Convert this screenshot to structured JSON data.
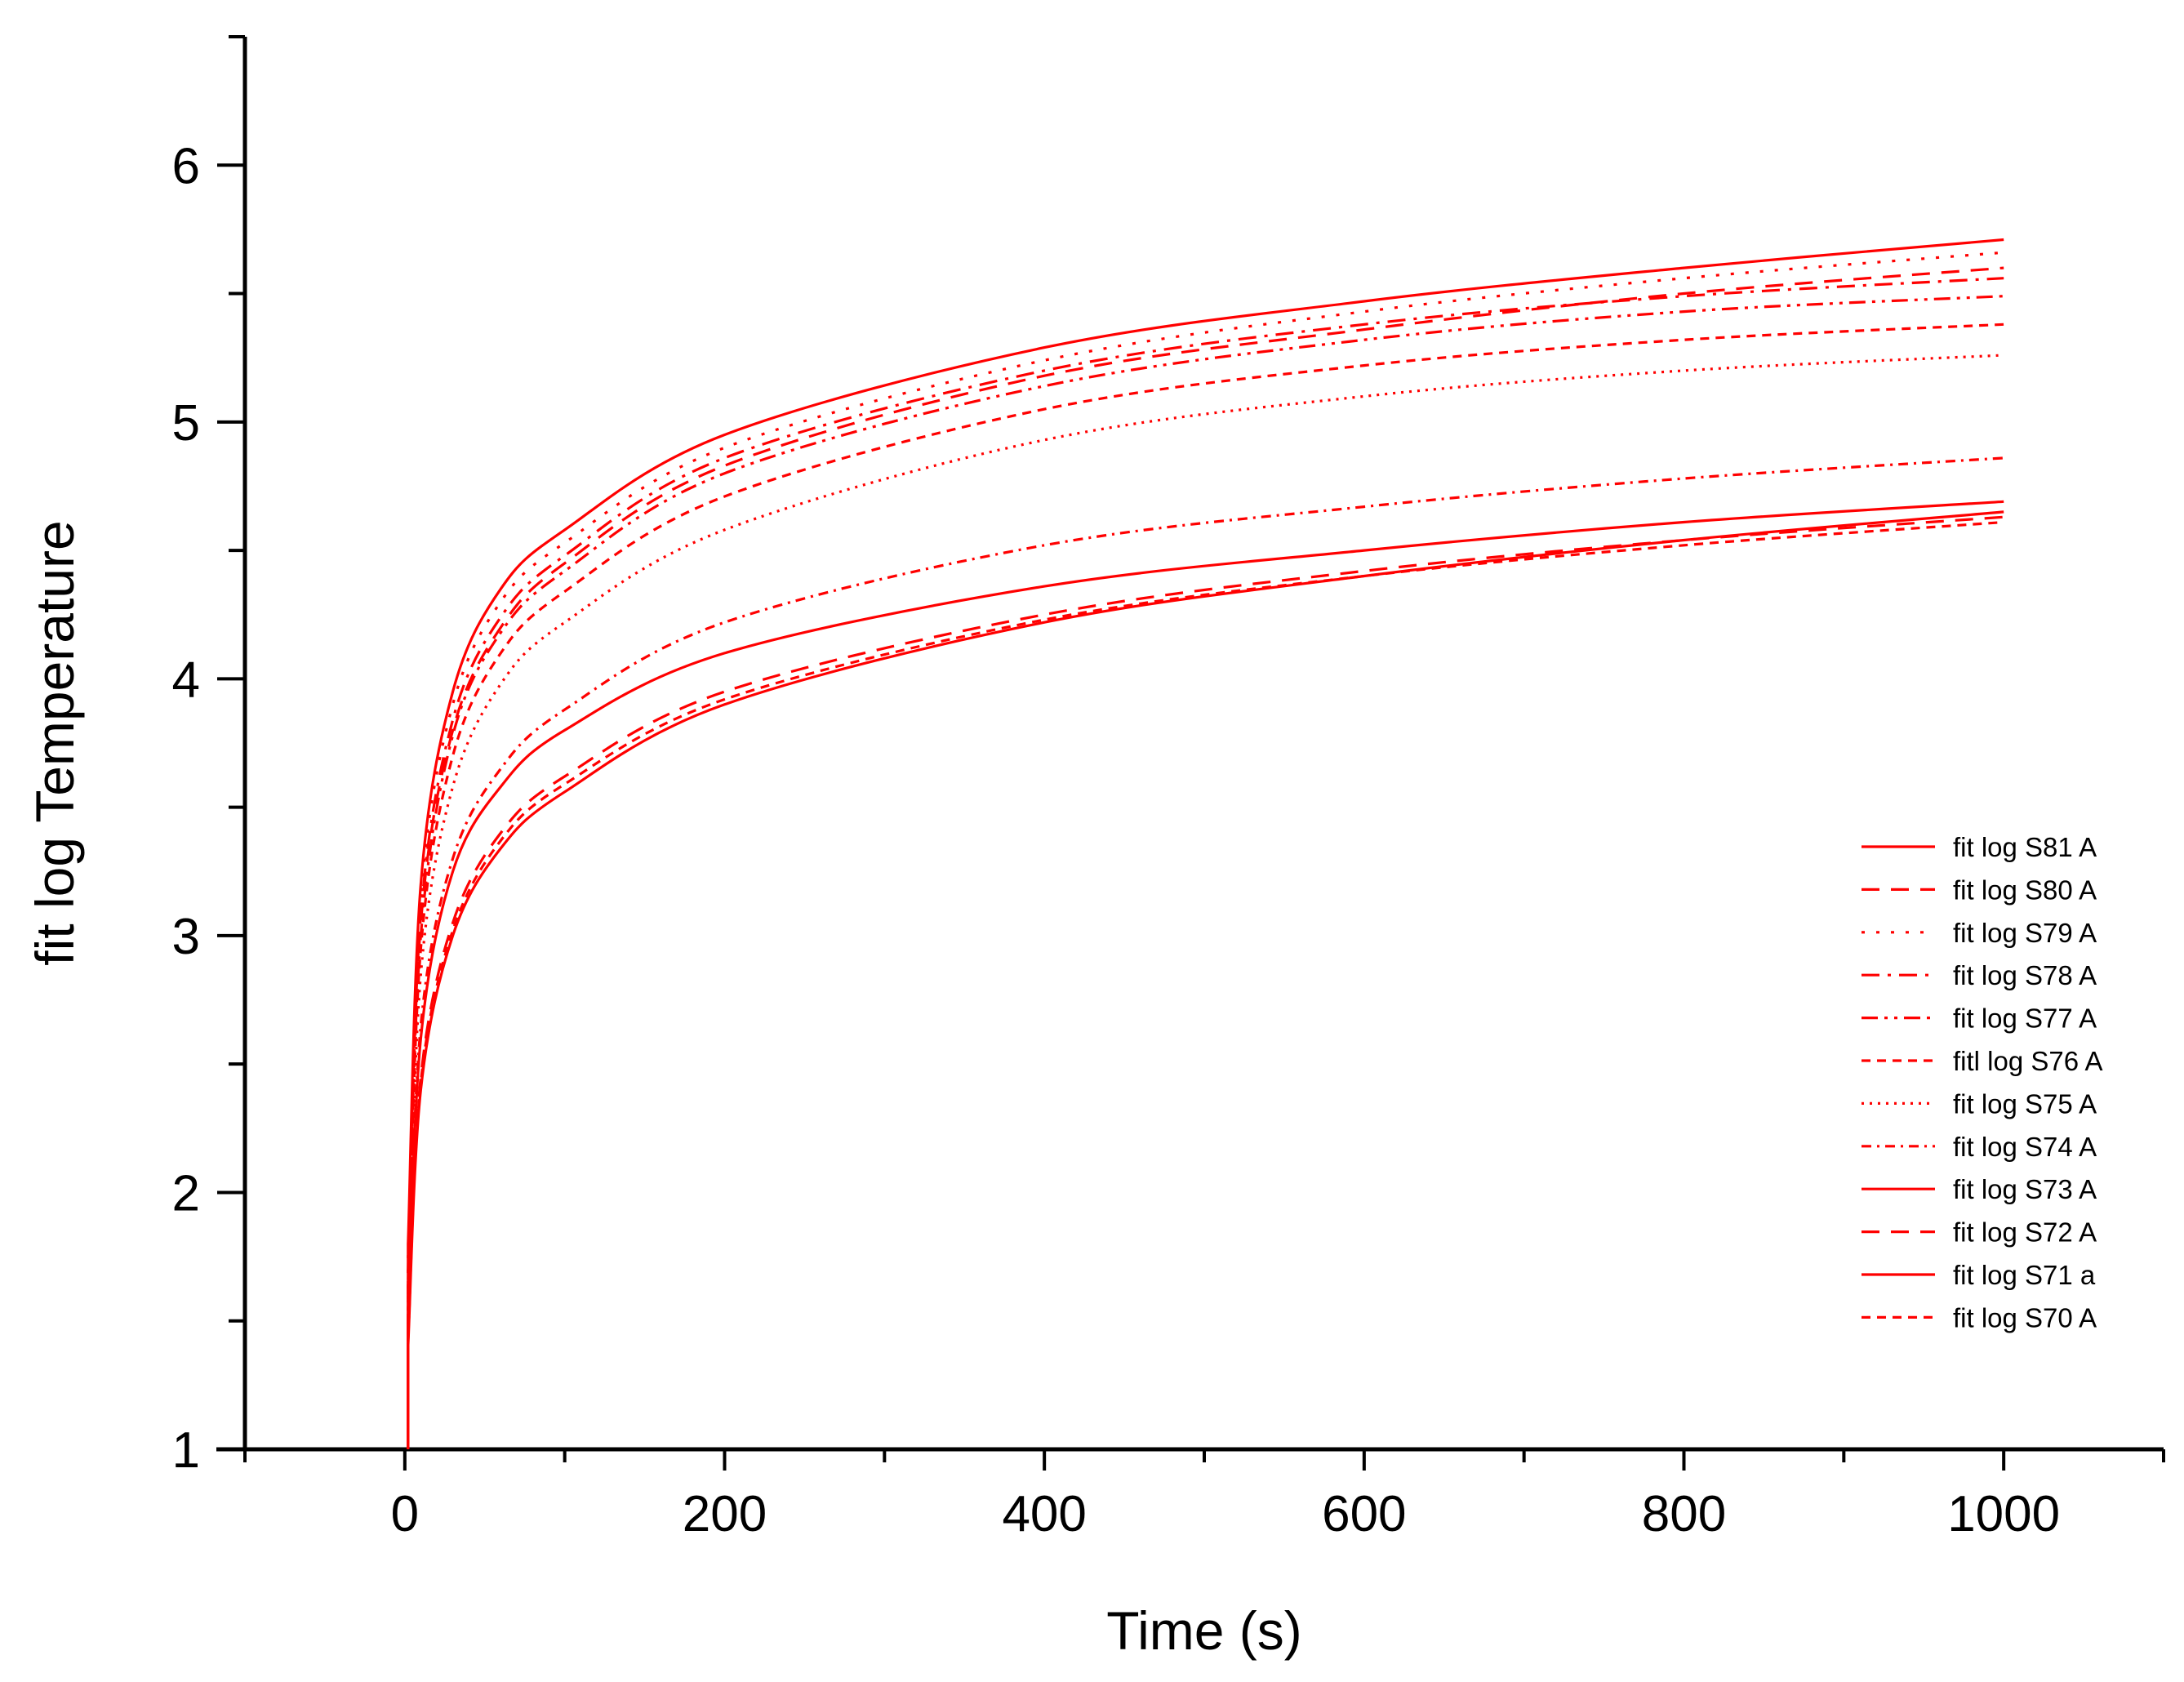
{
  "chart_data": {
    "type": "line",
    "title": "",
    "xlabel": "Time (s)",
    "ylabel": "fit log Temperature",
    "xlim": [
      -100,
      1100
    ],
    "ylim": [
      1,
      6.5
    ],
    "x_ticks": [
      0,
      200,
      400,
      600,
      800,
      1000
    ],
    "y_ticks": [
      1,
      2,
      3,
      4,
      5,
      6
    ],
    "grid": false,
    "legend_position": "right",
    "line_color": "#ff0000",
    "series": [
      {
        "name": "fit log S81 A",
        "dash": "solid",
        "x": [
          2,
          10,
          30,
          60,
          100,
          200,
          400,
          600,
          800,
          1000
        ],
        "y": [
          1.8,
          3.2,
          3.95,
          4.35,
          4.58,
          4.95,
          5.29,
          5.47,
          5.6,
          5.71
        ]
      },
      {
        "name": "fit log S80 A",
        "dash": "dash",
        "x": [
          2,
          10,
          30,
          60,
          100,
          200,
          400,
          600,
          800,
          1000
        ],
        "y": [
          1.7,
          3.05,
          3.8,
          4.2,
          4.45,
          4.83,
          5.18,
          5.36,
          5.5,
          5.6
        ]
      },
      {
        "name": "fit log S79 A",
        "dash": "dot",
        "x": [
          2,
          10,
          30,
          60,
          100,
          200,
          400,
          600,
          800,
          1000
        ],
        "y": [
          1.75,
          3.15,
          3.9,
          4.3,
          4.53,
          4.9,
          5.24,
          5.43,
          5.56,
          5.66
        ]
      },
      {
        "name": "fit log S78 A",
        "dash": "dashdot",
        "x": [
          2,
          10,
          30,
          60,
          100,
          200,
          400,
          600,
          800,
          1000
        ],
        "y": [
          1.7,
          3.08,
          3.84,
          4.24,
          4.48,
          4.86,
          5.2,
          5.38,
          5.49,
          5.56
        ]
      },
      {
        "name": "fit log S77 A",
        "dash": "dashdotdot",
        "x": [
          2,
          10,
          30,
          60,
          100,
          200,
          400,
          600,
          800,
          1000
        ],
        "y": [
          1.65,
          3.0,
          3.78,
          4.18,
          4.42,
          4.8,
          5.14,
          5.32,
          5.43,
          5.49
        ]
      },
      {
        "name": "fitl log S76 A",
        "dash": "shortdash",
        "x": [
          2,
          10,
          30,
          60,
          100,
          200,
          400,
          600,
          800,
          1000
        ],
        "y": [
          1.6,
          2.95,
          3.7,
          4.1,
          4.34,
          4.71,
          5.05,
          5.22,
          5.32,
          5.38
        ]
      },
      {
        "name": "fit log S75 A",
        "dash": "shortdot",
        "x": [
          2,
          10,
          30,
          60,
          100,
          200,
          400,
          600,
          800,
          1000
        ],
        "y": [
          1.55,
          2.85,
          3.58,
          3.98,
          4.22,
          4.58,
          4.93,
          5.1,
          5.2,
          5.26
        ]
      },
      {
        "name": "fit log S74 A",
        "dash": "shortdashdot",
        "x": [
          2,
          10,
          30,
          60,
          100,
          200,
          400,
          600,
          800,
          1000
        ],
        "y": [
          1.5,
          2.65,
          3.3,
          3.65,
          3.88,
          4.22,
          4.52,
          4.67,
          4.78,
          4.86
        ]
      },
      {
        "name": "fit log S73 A",
        "dash": "solid",
        "x": [
          2,
          10,
          30,
          60,
          100,
          200,
          400,
          600,
          800,
          1000
        ],
        "y": [
          1.5,
          2.6,
          3.25,
          3.58,
          3.8,
          4.1,
          4.36,
          4.5,
          4.61,
          4.69
        ]
      },
      {
        "name": "fit log S72 A",
        "dash": "dash",
        "x": [
          2,
          10,
          30,
          60,
          100,
          200,
          400,
          600,
          800,
          1000
        ],
        "y": [
          1.45,
          2.45,
          3.05,
          3.4,
          3.62,
          3.95,
          4.25,
          4.42,
          4.54,
          4.63
        ]
      },
      {
        "name": "fit log S71 a",
        "dash": "solid",
        "x": [
          2,
          10,
          30,
          60,
          100,
          200,
          400,
          600,
          800,
          1000
        ],
        "y": [
          1.4,
          2.4,
          3.0,
          3.34,
          3.56,
          3.9,
          4.22,
          4.4,
          4.54,
          4.65
        ]
      },
      {
        "name": "fit log S70 A",
        "dash": "shortdash",
        "x": [
          2,
          10,
          30,
          60,
          100,
          200,
          400,
          600,
          800,
          1000
        ],
        "y": [
          1.42,
          2.43,
          3.02,
          3.37,
          3.59,
          3.92,
          4.23,
          4.4,
          4.52,
          4.61
        ]
      }
    ]
  }
}
